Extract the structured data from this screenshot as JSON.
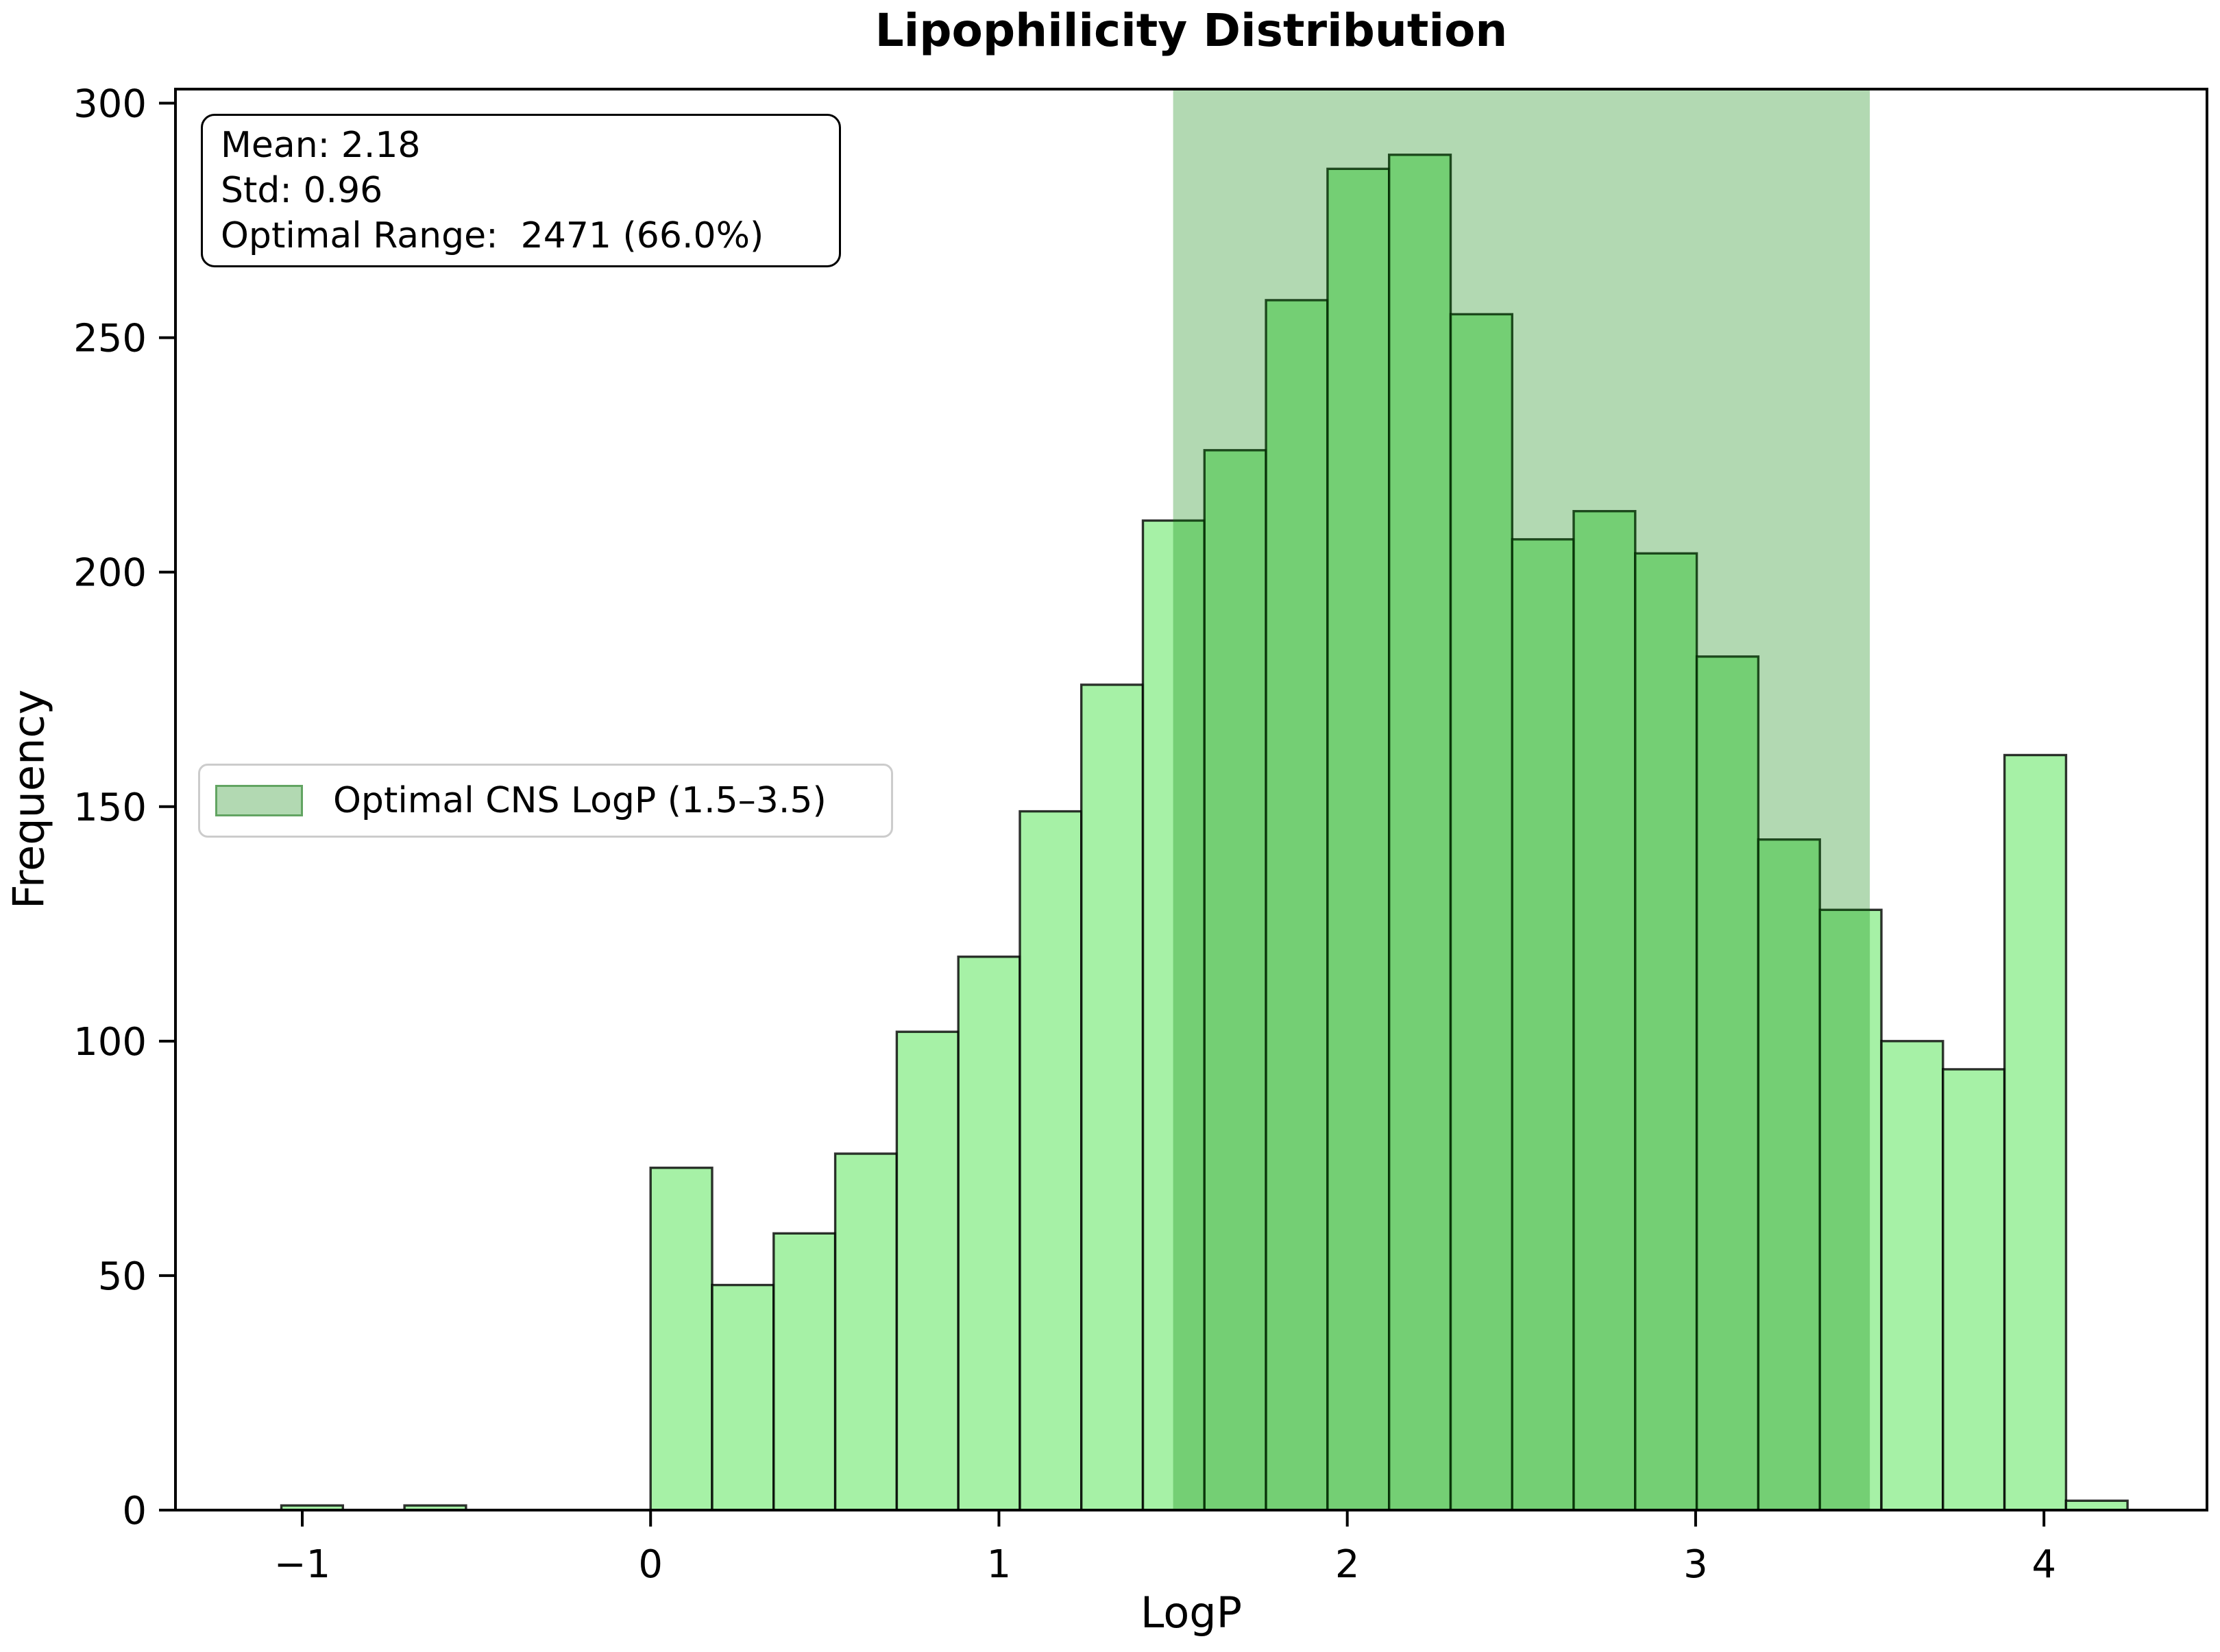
{
  "figure": {
    "title": "Lipophilicity Distribution",
    "annotation": {
      "line1": "Mean: 2.18",
      "line2": "Std: 0.96",
      "line3": "Optimal Range:  2471 (66.0%)"
    },
    "legend": {
      "label": "Optimal CNS LogP (1.5–3.5)",
      "swatch_color": "#008000",
      "swatch_alpha": 0.3
    }
  },
  "chart_data": {
    "type": "bar",
    "subtype": "histogram",
    "title": "Lipophilicity Distribution",
    "xlabel": "LogP",
    "ylabel": "Frequency",
    "grid": false,
    "mean": 2.18,
    "std": 0.96,
    "optimal_count": 2471,
    "optimal_pct": 66.0,
    "bin_start": -1.06,
    "bin_width": 0.176667,
    "counts": [
      1,
      0,
      1,
      0,
      0,
      0,
      73,
      48,
      59,
      76,
      102,
      118,
      149,
      176,
      211,
      226,
      258,
      286,
      289,
      255,
      207,
      213,
      204,
      182,
      143,
      128,
      100,
      94,
      161,
      2
    ],
    "xlim": [
      -1.364,
      4.468
    ],
    "ylim": [
      0,
      303
    ],
    "x_ticks": [
      {
        "v": -1,
        "label": "−1"
      },
      {
        "v": 0,
        "label": "0"
      },
      {
        "v": 1,
        "label": "1"
      },
      {
        "v": 2,
        "label": "2"
      },
      {
        "v": 3,
        "label": "3"
      },
      {
        "v": 4,
        "label": "4"
      }
    ],
    "y_ticks": [
      {
        "v": 0,
        "label": "0"
      },
      {
        "v": 50,
        "label": "50"
      },
      {
        "v": 100,
        "label": "100"
      },
      {
        "v": 150,
        "label": "150"
      },
      {
        "v": 200,
        "label": "200"
      },
      {
        "v": 250,
        "label": "250"
      },
      {
        "v": 300,
        "label": "300"
      }
    ],
    "optimal_band": {
      "from": 1.5,
      "to": 3.5,
      "color": "#008000",
      "alpha": 0.3
    },
    "bar_style": {
      "fill": "#90EE90",
      "fill_alpha": 0.8,
      "edge": "#000000",
      "edge_alpha": 0.8
    },
    "legend_position": "center left"
  }
}
